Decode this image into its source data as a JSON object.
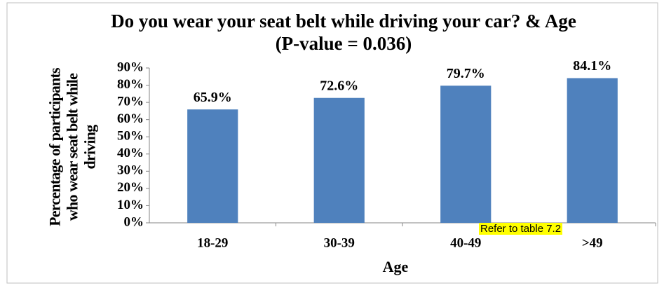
{
  "chart_data": {
    "type": "bar",
    "title": "Do you wear your seat belt while driving your car? & Age (P-value = 0.036)",
    "x_label": "Age",
    "y_label": "Percentage of participants who wear seat belt while driving",
    "categories": [
      "18-29",
      "30-39",
      "40-49",
      ">49"
    ],
    "values": [
      65.9,
      72.6,
      79.7,
      84.1
    ],
    "value_labels": [
      "65.9%",
      "72.6%",
      "79.7%",
      "84.1%"
    ],
    "color": "#4f81bd",
    "ylim": [
      0,
      90
    ],
    "yticks": [
      {
        "value": 0,
        "label": "0%"
      },
      {
        "value": 10,
        "label": "10%"
      },
      {
        "value": 20,
        "label": "20%"
      },
      {
        "value": 30,
        "label": "30%"
      },
      {
        "value": 40,
        "label": "40%"
      },
      {
        "value": 50,
        "label": "50%"
      },
      {
        "value": 60,
        "label": "60%"
      },
      {
        "value": 70,
        "label": "70%"
      },
      {
        "value": 80,
        "label": "80%"
      },
      {
        "value": 90,
        "label": "90%"
      }
    ],
    "annotation": "Refer to table 7.2",
    "grid": false
  }
}
